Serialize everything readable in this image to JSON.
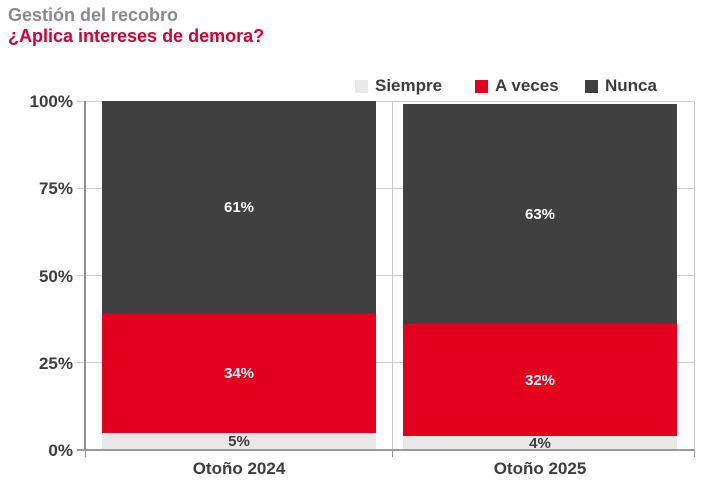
{
  "header": {
    "title": "Gestión del recobro",
    "subtitle": "¿Aplica intereses de demora?"
  },
  "colors": {
    "title_gray": "#8a8a8a",
    "subtitle_red": "#d50032",
    "bar_dark": "#404040",
    "bar_red": "#e2001e",
    "bar_light": "#e8e8e8",
    "axis_text": "#3d3d3d",
    "gridline": "#cdcdcd",
    "axis_line": "#9a9a9a"
  },
  "legend": [
    {
      "label": "Siempre",
      "color": "#e8e8e8"
    },
    {
      "label": "A veces",
      "color": "#e2001e"
    },
    {
      "label": "Nunca",
      "color": "#404040"
    }
  ],
  "chart_data": {
    "type": "bar",
    "stacked": true,
    "title": "Gestión del recobro — ¿Aplica intereses de demora?",
    "categories": [
      "Otoño 2024",
      "Otoño 2025"
    ],
    "series": [
      {
        "name": "Siempre",
        "color": "#e8e8e8",
        "label_color": "#3d3d3d",
        "values": [
          5,
          4
        ]
      },
      {
        "name": "A veces",
        "color": "#e2001e",
        "label_color": "#ffffff",
        "values": [
          34,
          32
        ]
      },
      {
        "name": "Nunca",
        "color": "#404040",
        "label_color": "#ffffff",
        "values": [
          61,
          63
        ]
      }
    ],
    "value_suffix": "%",
    "xlabel": "",
    "ylabel": "",
    "ylim": [
      0,
      100
    ],
    "yticks": [
      0,
      25,
      50,
      75,
      100
    ],
    "ytick_suffix": "%",
    "grid": true,
    "legend_position": "top-right"
  }
}
